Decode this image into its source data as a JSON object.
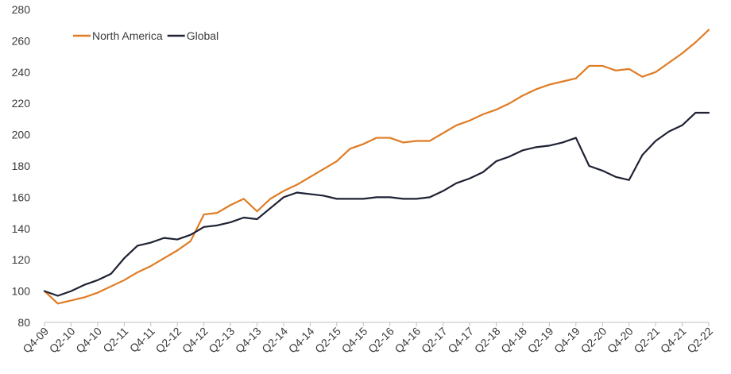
{
  "chart_data": {
    "type": "line",
    "title": "",
    "xlabel": "",
    "ylabel": "",
    "ylim": [
      80,
      280
    ],
    "yticks": [
      80,
      100,
      120,
      140,
      160,
      180,
      200,
      220,
      240,
      260,
      280
    ],
    "grid": false,
    "legend_position": "top-left",
    "categories": [
      "Q4-09",
      "Q1-10",
      "Q2-10",
      "Q3-10",
      "Q4-10",
      "Q1-11",
      "Q2-11",
      "Q3-11",
      "Q4-11",
      "Q1-12",
      "Q2-12",
      "Q3-12",
      "Q4-12",
      "Q1-13",
      "Q2-13",
      "Q3-13",
      "Q4-13",
      "Q1-14",
      "Q2-14",
      "Q3-14",
      "Q4-14",
      "Q1-15",
      "Q2-15",
      "Q3-15",
      "Q4-15",
      "Q1-16",
      "Q2-16",
      "Q3-16",
      "Q4-16",
      "Q1-17",
      "Q2-17",
      "Q3-17",
      "Q4-17",
      "Q1-18",
      "Q2-18",
      "Q3-18",
      "Q4-18",
      "Q1-19",
      "Q2-19",
      "Q3-19",
      "Q4-19",
      "Q1-20",
      "Q2-20",
      "Q3-20",
      "Q4-20",
      "Q1-21",
      "Q2-21",
      "Q3-21",
      "Q4-21",
      "Q1-22",
      "Q2-22"
    ],
    "tick_labels": [
      "Q4-09",
      "Q2-10",
      "Q4-10",
      "Q2-11",
      "Q4-11",
      "Q2-12",
      "Q4-12",
      "Q2-13",
      "Q4-13",
      "Q2-14",
      "Q4-14",
      "Q2-15",
      "Q4-15",
      "Q2-16",
      "Q4-16",
      "Q2-17",
      "Q4-17",
      "Q2-18",
      "Q4-18",
      "Q2-19",
      "Q4-19",
      "Q2-20",
      "Q4-20",
      "Q2-21",
      "Q4-21",
      "Q2-22"
    ],
    "series": [
      {
        "name": "North America",
        "color": "#E07B24",
        "values": [
          100,
          92,
          94,
          96,
          99,
          103,
          107,
          112,
          116,
          121,
          126,
          132,
          149,
          150,
          155,
          159,
          151,
          159,
          164,
          168,
          173,
          178,
          183,
          191,
          194,
          198,
          198,
          195,
          196,
          196,
          201,
          206,
          209,
          213,
          216,
          220,
          225,
          229,
          232,
          234,
          236,
          244,
          244,
          241,
          242,
          237,
          240,
          246,
          252,
          259,
          267
        ]
      },
      {
        "name": "Global",
        "color": "#1E2233",
        "values": [
          100,
          97,
          100,
          104,
          107,
          111,
          121,
          129,
          131,
          134,
          133,
          136,
          141,
          142,
          144,
          147,
          146,
          153,
          160,
          163,
          162,
          161,
          159,
          159,
          159,
          160,
          160,
          159,
          159,
          160,
          164,
          169,
          172,
          176,
          183,
          186,
          190,
          192,
          193,
          195,
          198,
          180,
          177,
          173,
          171,
          187,
          196,
          202,
          206,
          214,
          214
        ]
      }
    ]
  }
}
